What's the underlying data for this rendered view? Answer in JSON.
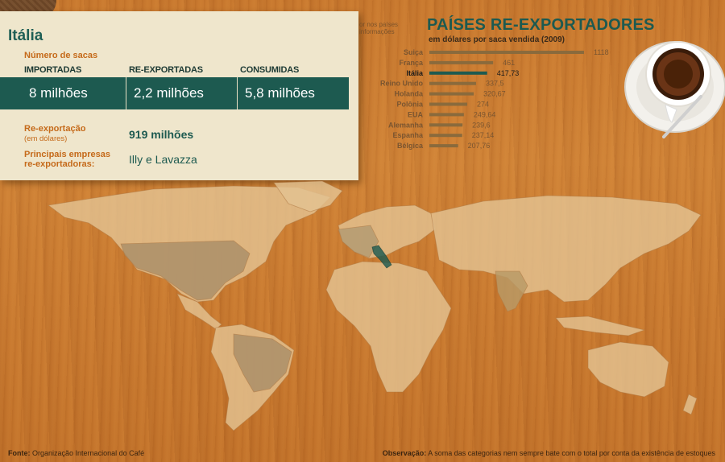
{
  "card": {
    "title": "Itália",
    "sacks_label": "Número de sacas",
    "columns": [
      {
        "header": "IMPORTADAS",
        "value": "8 milhões"
      },
      {
        "header": "RE-EXPORTADAS",
        "value": "2,2 milhões"
      },
      {
        "header": "CONSUMIDAS",
        "value": "5,8 milhões"
      }
    ],
    "reexport_label": "Re-exportação",
    "reexport_sublabel": "(em dólares)",
    "reexport_value": "919 milhões",
    "companies_label_1": "Principais empresas",
    "companies_label_2": "re-exportadoras:",
    "companies_value": "Illy e Lavazza",
    "hint_line1": "or nos países",
    "hint_line2": "informações"
  },
  "chart_data": {
    "type": "bar",
    "orientation": "horizontal",
    "title": "PAÍSES RE-EXPORTADORES",
    "subtitle": "em dólares por saca vendida (2009)",
    "categories": [
      "Suiça",
      "França",
      "Itália",
      "Reino Unido",
      "Holanda",
      "Polônia",
      "EUA",
      "Alemanha",
      "Espanha",
      "Bélgica"
    ],
    "values": [
      1118,
      461,
      417.73,
      337.5,
      320.67,
      274,
      249.64,
      239.6,
      237.14,
      207.76
    ],
    "value_labels": [
      "1118",
      "461",
      "417,73",
      "337,5",
      "320,67",
      "274",
      "249,64",
      "239,6",
      "237,14",
      "207,76"
    ],
    "highlight": "Itália",
    "colors": {
      "bar": "#8a6a3c",
      "highlight": "#1d5a50"
    }
  },
  "footer": {
    "source_label": "Fonte:",
    "source_text": "Organização Internacional do Café",
    "note_label": "Observação:",
    "note_text": "A soma das categorias nem sempre bate com o total por conta da existência de estoques"
  },
  "colors": {
    "teal": "#1d5a50",
    "orange": "#c56a1a",
    "card_bg": "#efe6cc",
    "wood": "#c97a30"
  }
}
